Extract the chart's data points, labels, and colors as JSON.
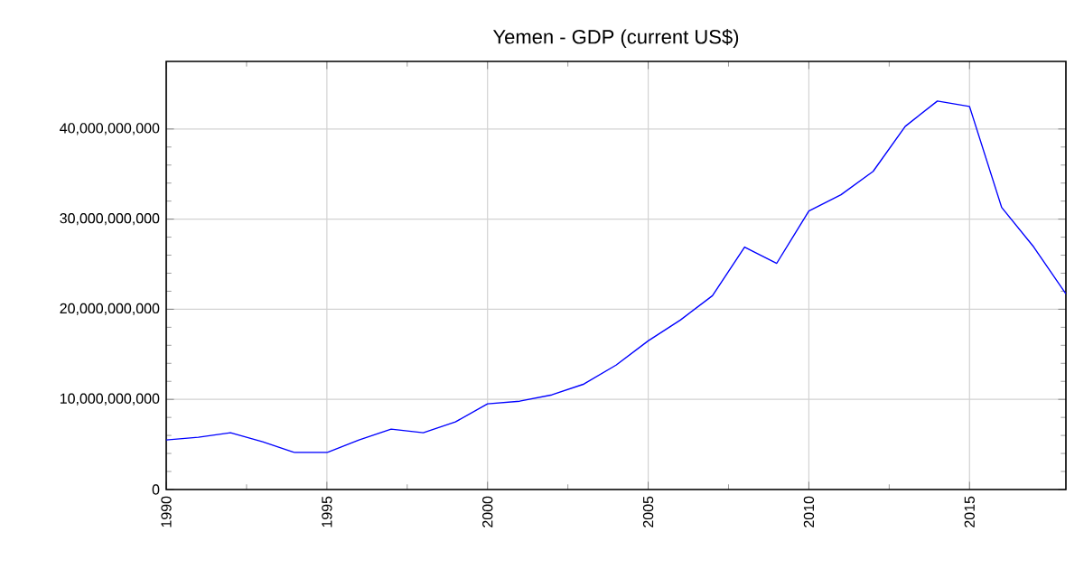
{
  "chart_data": {
    "type": "line",
    "title": "Yemen - GDP (current US$)",
    "x": [
      1990,
      1991,
      1992,
      1993,
      1994,
      1995,
      1996,
      1997,
      1998,
      1999,
      2000,
      2001,
      2002,
      2003,
      2004,
      2005,
      2006,
      2007,
      2008,
      2009,
      2010,
      2011,
      2012,
      2013,
      2014,
      2015,
      2016,
      2017,
      2018
    ],
    "series": [
      {
        "color": "#0000ff",
        "values": [
          5500000000.0,
          5800000000.0,
          6300000000.0,
          5300000000.0,
          4100000000.0,
          4100000000.0,
          5500000000.0,
          6700000000.0,
          6300000000.0,
          7500000000.0,
          9500000000.0,
          9800000000.0,
          10500000000.0,
          11700000000.0,
          13800000000.0,
          16500000000.0,
          18800000000.0,
          21500000000.0,
          26900000000.0,
          25100000000.0,
          30900000000.0,
          32700000000.0,
          35300000000.0,
          40300000000.0,
          43100000000.0,
          42500000000.0,
          31300000000.0,
          26900000000.0,
          21700000000.0
        ]
      }
    ],
    "xlim": [
      1990,
      2018
    ],
    "ylim": [
      0,
      47500000000
    ],
    "xticks": [
      1990,
      1995,
      2000,
      2005,
      2010,
      2015
    ],
    "yticks": [
      0,
      {
        "value": 10000000000,
        "label": "10,000,000,000"
      },
      {
        "value": 20000000000,
        "label": "20,000,000,000"
      },
      {
        "value": 30000000000,
        "label": "30,000,000,000"
      },
      {
        "value": 40000000000,
        "label": "40,000,000,000"
      }
    ],
    "grid": true,
    "marker": "none",
    "line_style": "solid"
  }
}
